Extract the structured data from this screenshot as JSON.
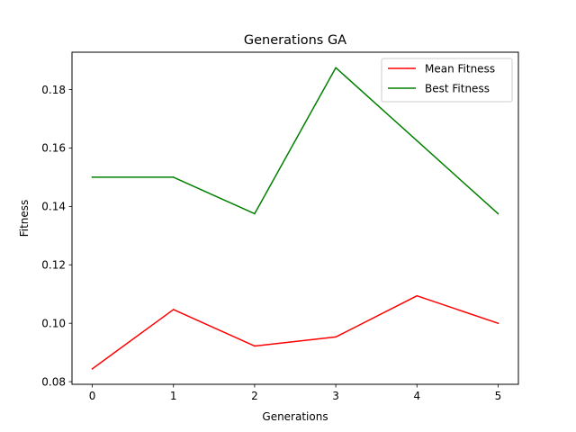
{
  "chart_data": {
    "type": "line",
    "title": "Generations GA",
    "xlabel": "Generations",
    "ylabel": "Fitness",
    "x": [
      0,
      1,
      2,
      3,
      4,
      5
    ],
    "series": [
      {
        "name": "Mean Fitness",
        "color": "#ff0000",
        "values": [
          0.0844,
          0.1047,
          0.0922,
          0.0953,
          0.1094,
          0.1
        ]
      },
      {
        "name": "Best Fitness",
        "color": "#008000",
        "values": [
          0.15,
          0.15,
          0.1375,
          0.1875,
          0.1625,
          0.1375
        ]
      }
    ],
    "xlim": [
      -0.25,
      5.25
    ],
    "ylim": [
      0.0791,
      0.1928
    ],
    "xticks": [
      "0",
      "1",
      "2",
      "3",
      "4",
      "5"
    ],
    "yticks": [
      "0.08",
      "0.10",
      "0.12",
      "0.14",
      "0.16",
      "0.18"
    ],
    "grid": false,
    "legend_position": "top-right"
  }
}
